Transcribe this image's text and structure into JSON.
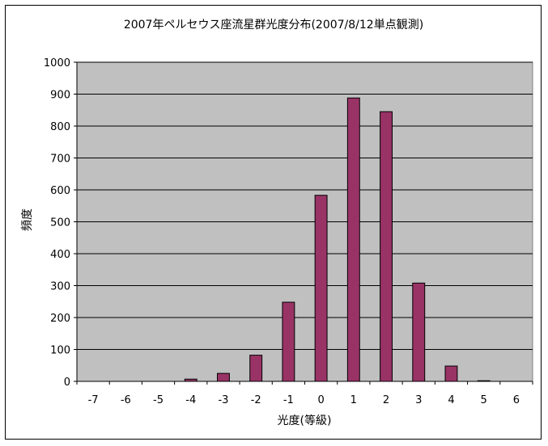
{
  "chart_data": {
    "type": "bar",
    "title": "2007年ペルセウス座流星群光度分布(2007/8/12単点観測)",
    "xlabel": "光度(等級)",
    "ylabel": "頻度",
    "categories": [
      "-7",
      "-6",
      "-5",
      "-4",
      "-3",
      "-2",
      "-1",
      "0",
      "1",
      "2",
      "3",
      "4",
      "5",
      "6"
    ],
    "values": [
      0,
      0,
      0,
      7,
      25,
      82,
      248,
      583,
      888,
      845,
      308,
      48,
      2,
      0
    ],
    "ylim": [
      0,
      1000
    ],
    "yticks": [
      "0",
      "100",
      "200",
      "300",
      "400",
      "500",
      "600",
      "700",
      "800",
      "900",
      "1000"
    ],
    "grid": true,
    "legend": "none",
    "colors": {
      "bar": "#993366",
      "plot_bg": "#c0c0c0",
      "grid": "#000000"
    }
  }
}
